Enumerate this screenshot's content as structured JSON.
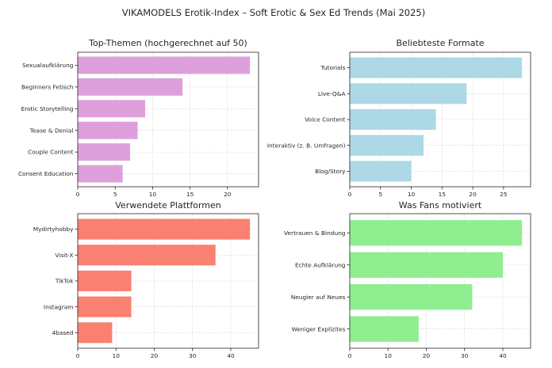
{
  "figure_title": "VIKAMODELS Erotik-Index – Soft Erotic & Sex Ed Trends (Mai 2025)",
  "chart_data": [
    {
      "type": "bar",
      "orientation": "horizontal",
      "title": "Top-Themen (hochgerechnet auf 50)",
      "categories": [
        "Sexualaufklärung",
        "Beginners Fetisch",
        "Erotic Storytelling",
        "Tease & Denial",
        "Couple Content",
        "Consent Education"
      ],
      "values": [
        23,
        14,
        9,
        8,
        7,
        6
      ],
      "xlim": [
        0,
        24.15
      ],
      "xticks": [
        0,
        5,
        10,
        15,
        20
      ],
      "grid": true,
      "color": "#dda0dd"
    },
    {
      "type": "bar",
      "orientation": "horizontal",
      "title": "Beliebteste Formate",
      "categories": [
        "Tutorials",
        "Live-Q&A",
        "Voice Content",
        "Interaktiv (z. B. Umfragen)",
        "Blog/Story"
      ],
      "values": [
        28,
        19,
        14,
        12,
        10
      ],
      "xlim": [
        0,
        29.4
      ],
      "xticks": [
        0,
        5,
        10,
        15,
        20,
        25
      ],
      "grid": true,
      "color": "#add8e6"
    },
    {
      "type": "bar",
      "orientation": "horizontal",
      "title": "Verwendete Plattformen",
      "categories": [
        "Mydirtyhobby",
        "Visit-X",
        "TikTok",
        "Instagram",
        "4based"
      ],
      "values": [
        45,
        36,
        14,
        14,
        9
      ],
      "xlim": [
        0,
        47.25
      ],
      "xticks": [
        0,
        10,
        20,
        30,
        40
      ],
      "grid": true,
      "color": "#fa8072"
    },
    {
      "type": "bar",
      "orientation": "horizontal",
      "title": "Was Fans motiviert",
      "categories": [
        "Vertrauen & Bindung",
        "Echte Aufklärung",
        "Neugier auf Neues",
        "Weniger Explizites"
      ],
      "values": [
        45,
        40,
        32,
        18
      ],
      "xlim": [
        0,
        47.25
      ],
      "xticks": [
        0,
        10,
        20,
        30,
        40
      ],
      "grid": true,
      "color": "#90ee90"
    }
  ]
}
